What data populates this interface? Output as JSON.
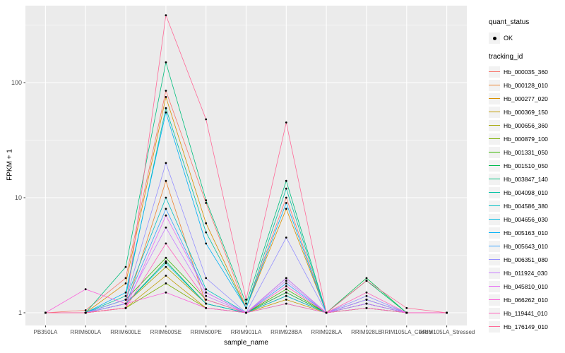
{
  "chart_data": {
    "type": "line",
    "title": "",
    "xlabel": "sample_name",
    "ylabel": "FPKM + 1",
    "y_scale": "log10",
    "y_ticks": [
      1,
      10,
      100
    ],
    "ylim": [
      1,
      400
    ],
    "grid": true,
    "panel_bg": "#EBEBEB",
    "grid_color": "#FFFFFF",
    "point_color": "#000000",
    "axis_text_color": "#4D4D4D",
    "legend_position": "right",
    "categories": [
      "PB350LA",
      "RRIM600LA",
      "RRIM600LE",
      "RRIM600SE",
      "RRIM600PE",
      "RRIM901LA",
      "RRIM928BA",
      "RRIM928LA",
      "RRIM928LE",
      "RRIM105LA_Control",
      "RRIM105LA_Stressed"
    ],
    "legend": {
      "quant_status_title": "quant_status",
      "quant_status_items": [
        "OK"
      ],
      "tracking_title": "tracking_id"
    },
    "series": [
      {
        "name": "Hb_000035_360",
        "color": "#F8766D",
        "values": [
          1,
          1.05,
          2.0,
          85,
          9,
          1.1,
          10,
          1,
          1.3,
          1,
          1
        ]
      },
      {
        "name": "Hb_000128_010",
        "color": "#EA8331",
        "values": [
          1,
          1,
          1.1,
          14,
          1.2,
          1,
          1.5,
          1,
          1.1,
          1,
          1
        ]
      },
      {
        "name": "Hb_000277_020",
        "color": "#D89000",
        "values": [
          1,
          1,
          1.8,
          75,
          6,
          1.1,
          8,
          1,
          1.2,
          1,
          1
        ]
      },
      {
        "name": "Hb_000369_150",
        "color": "#C09B00",
        "values": [
          1,
          1,
          1.1,
          2.1,
          1.1,
          1,
          1.3,
          1,
          1.1,
          1,
          1
        ]
      },
      {
        "name": "Hb_000656_360",
        "color": "#A3A500",
        "values": [
          1,
          1,
          1.2,
          2.5,
          1.2,
          1,
          1.4,
          1,
          1.2,
          1,
          1
        ]
      },
      {
        "name": "Hb_000879_100",
        "color": "#7CAE00",
        "values": [
          1,
          1,
          1.1,
          1.8,
          1.1,
          1,
          1.2,
          1,
          1.1,
          1,
          1
        ]
      },
      {
        "name": "Hb_001331_050",
        "color": "#39B600",
        "values": [
          1,
          1,
          1.3,
          3.0,
          1.3,
          1,
          1.6,
          1,
          1.9,
          1,
          1
        ]
      },
      {
        "name": "Hb_001510_050",
        "color": "#00BB4E",
        "values": [
          1,
          1,
          1.2,
          2.8,
          1.2,
          1,
          1.5,
          1,
          2.0,
          1,
          1
        ]
      },
      {
        "name": "Hb_003847_140",
        "color": "#00BF7D",
        "values": [
          1,
          1,
          2.5,
          150,
          9.5,
          1.2,
          14,
          1,
          1.9,
          1,
          1
        ]
      },
      {
        "name": "Hb_004098_010",
        "color": "#00C1A3",
        "values": [
          1,
          1,
          1.4,
          60,
          5,
          1.1,
          12,
          1,
          1.3,
          1,
          1
        ]
      },
      {
        "name": "Hb_004586_380",
        "color": "#00BFC4",
        "values": [
          1,
          1,
          1.3,
          10,
          1.6,
          1,
          2.0,
          1,
          1.2,
          1,
          1
        ]
      },
      {
        "name": "Hb_004656_030",
        "color": "#00BAE0",
        "values": [
          1,
          1,
          1.2,
          2.7,
          1.2,
          1,
          1.4,
          1,
          1.2,
          1,
          1
        ]
      },
      {
        "name": "Hb_005163_010",
        "color": "#00B0F6",
        "values": [
          1,
          1,
          1.5,
          55,
          4,
          1.1,
          9,
          1,
          1.3,
          1,
          1
        ]
      },
      {
        "name": "Hb_005643_010",
        "color": "#35A2FF",
        "values": [
          1,
          1,
          1.2,
          8,
          1.5,
          1,
          1.8,
          1,
          1.2,
          1,
          1
        ]
      },
      {
        "name": "Hb_006351_080",
        "color": "#9590FF",
        "values": [
          1,
          1,
          1.3,
          20,
          2.0,
          1,
          4.5,
          1,
          1.4,
          1,
          1
        ]
      },
      {
        "name": "Hb_011924_030",
        "color": "#C77CFF",
        "values": [
          1,
          1,
          1.2,
          5.5,
          1.4,
          1,
          1.9,
          1,
          1.3,
          1,
          1
        ]
      },
      {
        "name": "Hb_045810_010",
        "color": "#E76BF3",
        "values": [
          1,
          1,
          1.1,
          7,
          1.5,
          1,
          2.0,
          1,
          1.2,
          1,
          1
        ]
      },
      {
        "name": "Hb_066262_010",
        "color": "#FA62DB",
        "values": [
          1,
          1.6,
          1.2,
          1.5,
          1.1,
          1,
          1.2,
          1,
          1.1,
          1,
          1
        ]
      },
      {
        "name": "Hb_119441_010",
        "color": "#FF62BC",
        "values": [
          1,
          1,
          1.1,
          4,
          1.3,
          1,
          1.7,
          1,
          1.5,
          1,
          1
        ]
      },
      {
        "name": "Hb_176149_010",
        "color": "#FF6A98",
        "values": [
          1,
          1,
          1.1,
          385,
          48,
          1.3,
          45,
          1,
          1.9,
          1.1,
          1
        ]
      }
    ]
  }
}
